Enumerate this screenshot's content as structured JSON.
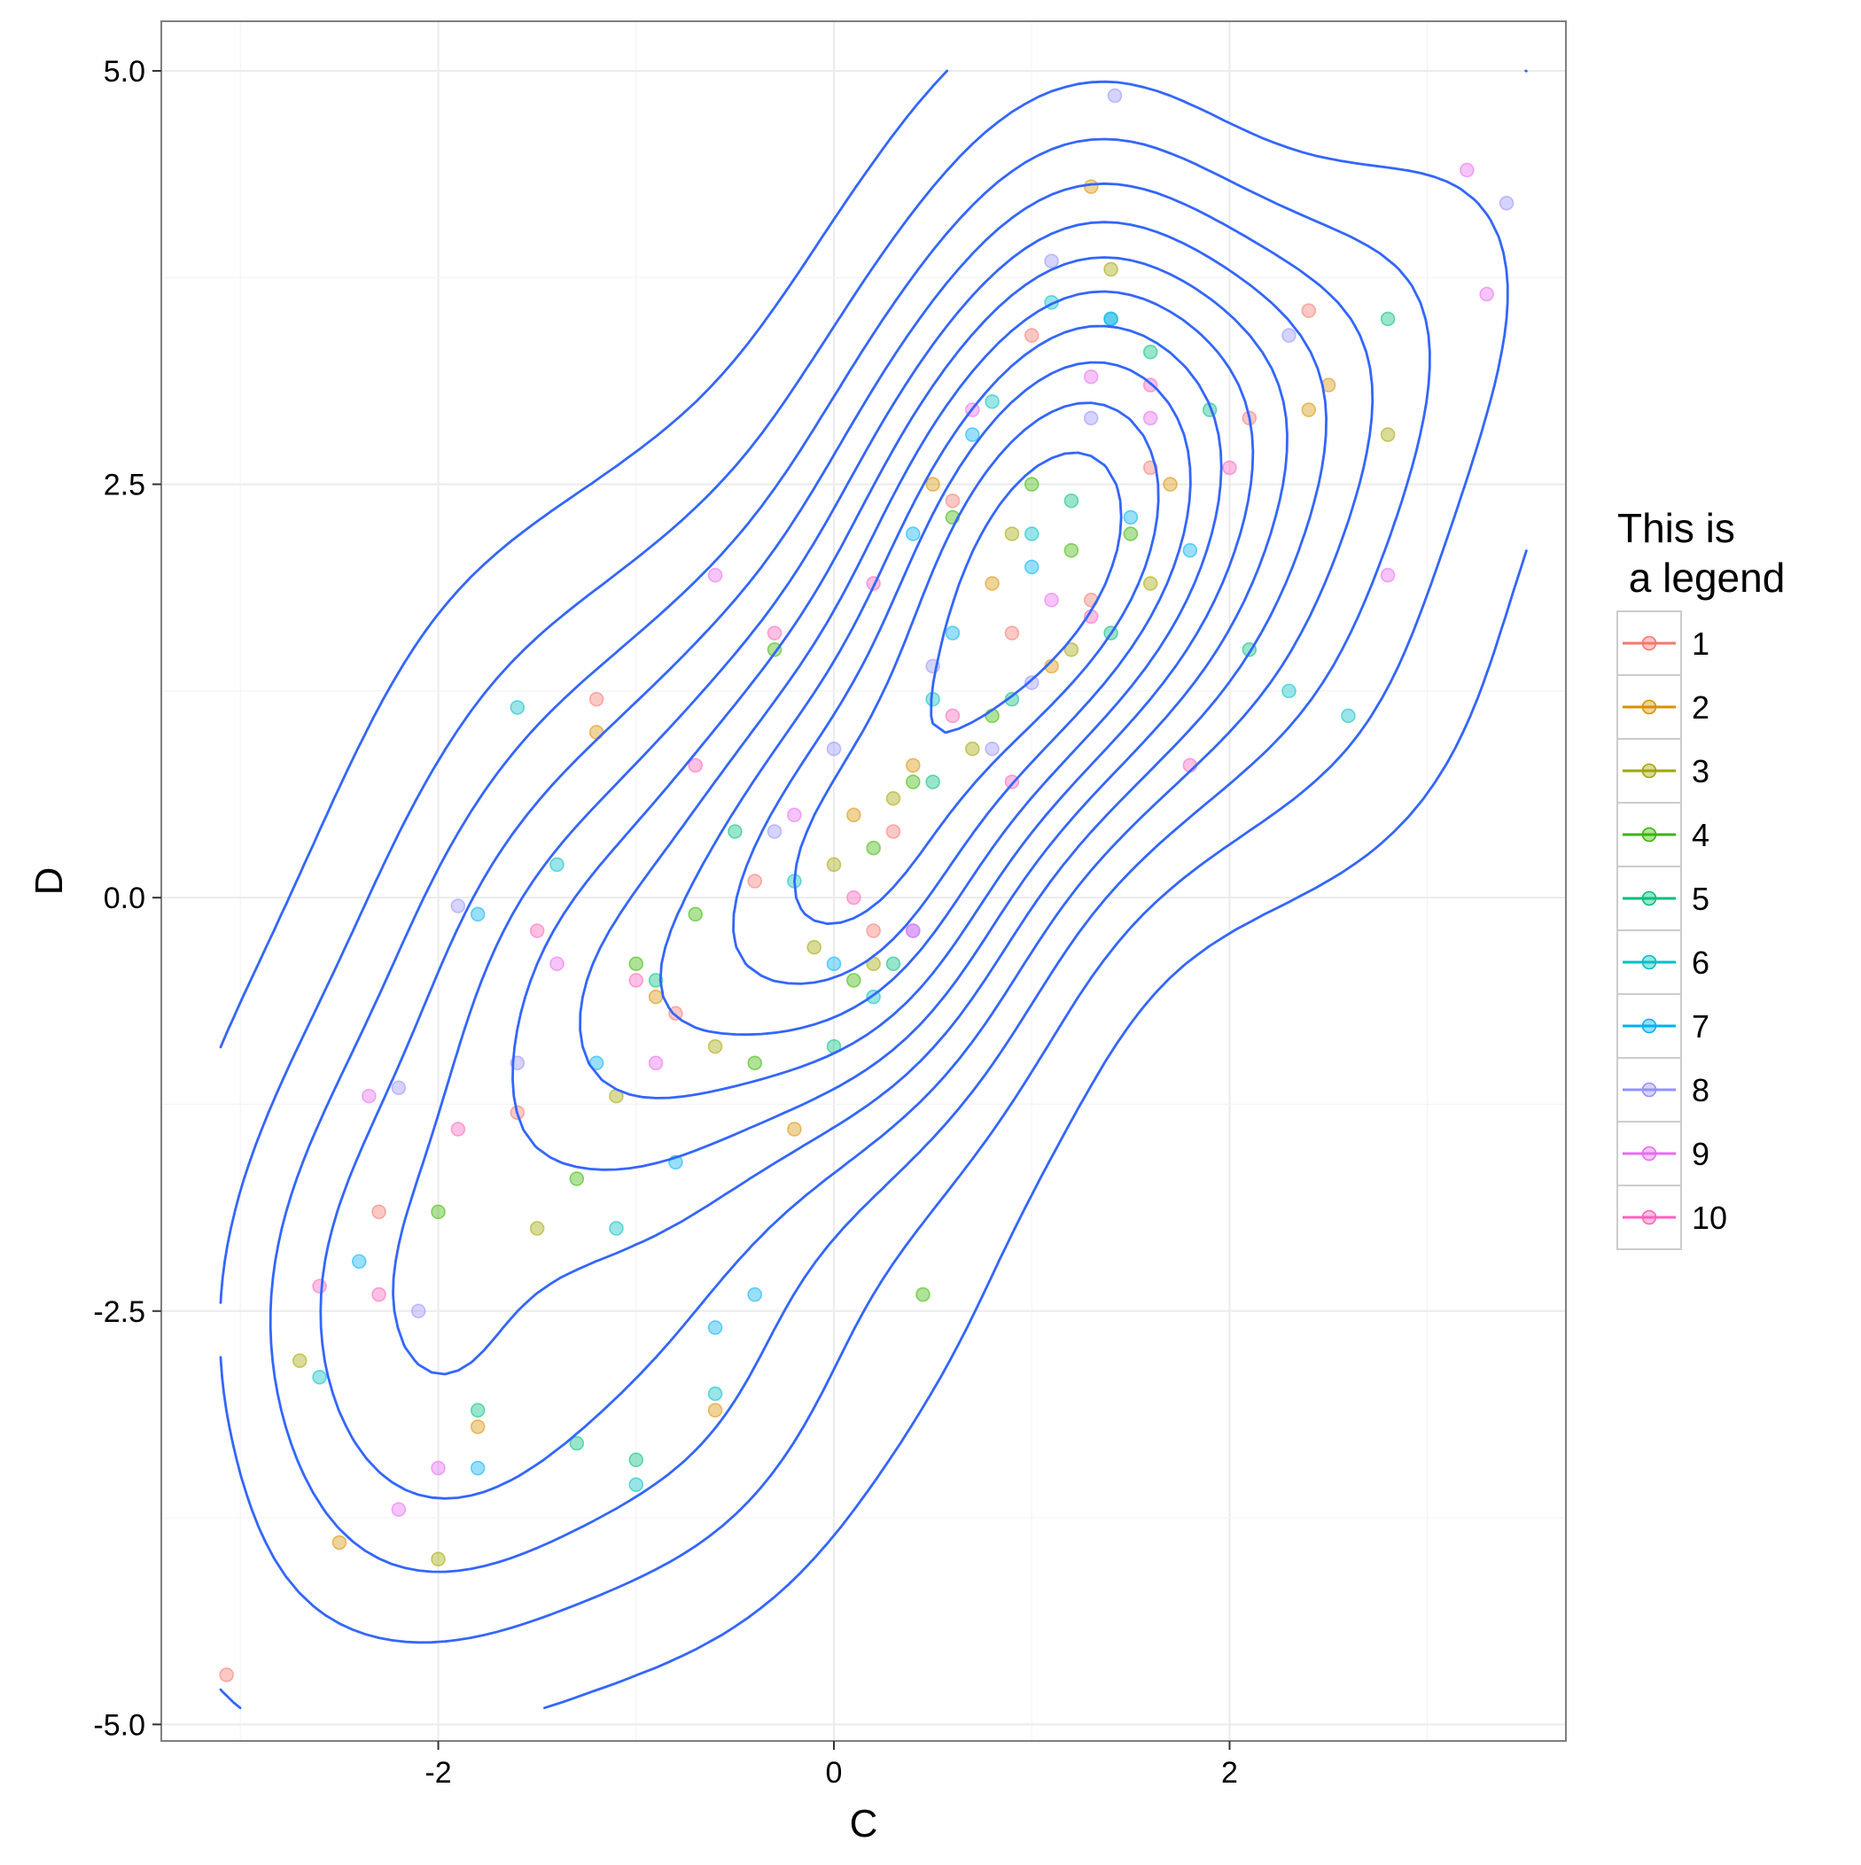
{
  "chart_data": {
    "type": "scatter",
    "title": "",
    "xlabel": "C",
    "ylabel": "D",
    "xlim": [
      -3.4,
      3.7
    ],
    "ylim": [
      -5.1,
      5.3
    ],
    "x_ticks": [
      -2,
      0,
      2
    ],
    "x_tick_labels": [
      "-2",
      "0",
      "2"
    ],
    "y_ticks": [
      -5,
      -2.5,
      0,
      2.5,
      5
    ],
    "y_tick_labels": [
      "-5.0",
      "-2.5",
      "0.0",
      "2.5",
      "5.0"
    ],
    "grid": true,
    "legend": {
      "title_lines": [
        "This is",
        " a legend"
      ],
      "position": "right",
      "entries": [
        "1",
        "2",
        "3",
        "4",
        "5",
        "6",
        "7",
        "8",
        "9",
        "10"
      ],
      "colors": [
        "#F8766D",
        "#D89000",
        "#A3A500",
        "#39B600",
        "#00BF7D",
        "#00BFC4",
        "#00B0F6",
        "#9590FF",
        "#E76BF3",
        "#FF62BC"
      ]
    },
    "point_opacity": 0.4,
    "contour_color": "#3366FF",
    "series": [
      {
        "name": "1",
        "x": [
          -3.07,
          2.4,
          1.0,
          -2.3,
          0.6,
          -1.2,
          0.9,
          1.6,
          -0.8,
          0.3,
          2.1,
          -1.6,
          0.2,
          1.3,
          -0.4
        ],
        "y": [
          -4.7,
          3.55,
          3.4,
          -1.9,
          2.4,
          1.2,
          1.6,
          2.6,
          -0.7,
          0.4,
          2.9,
          -1.3,
          -0.2,
          1.8,
          0.1
        ]
      },
      {
        "name": "2",
        "x": [
          1.3,
          2.5,
          -2.5,
          -0.6,
          0.5,
          -1.2,
          0.8,
          1.7,
          -0.2,
          0.1,
          -1.8,
          1.1,
          -0.9,
          0.4,
          2.4
        ],
        "y": [
          4.3,
          3.1,
          -3.9,
          -3.1,
          2.5,
          1.0,
          1.9,
          2.5,
          -1.4,
          0.5,
          -3.2,
          1.4,
          -0.6,
          0.8,
          2.95
        ]
      },
      {
        "name": "3",
        "x": [
          1.4,
          -2.0,
          -2.7,
          0.2,
          0.9,
          -0.6,
          1.2,
          -1.1,
          0.7,
          -0.1,
          1.6,
          -1.5,
          0.3,
          2.8,
          0.0
        ],
        "y": [
          3.8,
          -4.0,
          -2.8,
          -0.4,
          2.2,
          -0.9,
          1.5,
          -1.2,
          0.9,
          -0.3,
          1.9,
          -2.0,
          0.6,
          2.8,
          0.2
        ]
      },
      {
        "name": "4",
        "x": [
          -0.3,
          0.6,
          1.0,
          -1.0,
          0.4,
          -2.0,
          0.8,
          -1.3,
          1.5,
          0.1,
          -0.7,
          0.2,
          1.2,
          -0.4,
          0.45
        ],
        "y": [
          1.5,
          2.3,
          2.5,
          -0.4,
          0.7,
          -1.9,
          1.1,
          -1.7,
          2.2,
          -0.5,
          -0.1,
          0.3,
          2.1,
          -1.0,
          -2.4
        ]
      },
      {
        "name": "5",
        "x": [
          1.6,
          2.8,
          -1.0,
          -1.3,
          0.9,
          1.2,
          -0.5,
          0.5,
          1.9,
          -0.9,
          0.3,
          -1.8,
          1.4,
          0.0,
          2.1
        ],
        "y": [
          3.3,
          3.5,
          -3.4,
          -3.3,
          1.2,
          2.4,
          0.4,
          0.7,
          2.95,
          -0.5,
          -0.4,
          -3.1,
          1.6,
          -0.9,
          1.5
        ]
      },
      {
        "name": "6",
        "x": [
          -1.6,
          1.1,
          0.8,
          -2.6,
          -1.0,
          2.6,
          -0.6,
          0.2,
          -1.4,
          1.4,
          0.5,
          -0.2,
          1.0,
          -1.1,
          2.3
        ],
        "y": [
          1.15,
          3.6,
          3.0,
          -2.9,
          -3.55,
          1.1,
          -3.0,
          -0.6,
          0.2,
          3.5,
          1.2,
          0.1,
          2.2,
          -2.0,
          1.25
        ]
      },
      {
        "name": "7",
        "x": [
          -1.8,
          1.4,
          0.4,
          -1.8,
          -2.4,
          0.7,
          -0.6,
          -1.2,
          0.0,
          1.5,
          -0.4,
          1.0,
          0.6,
          1.8,
          -0.8
        ],
        "y": [
          -3.45,
          3.5,
          2.2,
          -0.1,
          -2.2,
          2.8,
          -2.6,
          -1.0,
          -0.4,
          2.3,
          -2.4,
          2.0,
          1.6,
          2.1,
          -1.6
        ]
      },
      {
        "name": "8",
        "x": [
          1.42,
          3.4,
          2.3,
          1.1,
          -1.9,
          -2.1,
          0.5,
          0.0,
          -1.6,
          0.8,
          1.3,
          -0.3,
          -2.2,
          0.4,
          1.0
        ],
        "y": [
          4.85,
          4.2,
          3.4,
          3.85,
          -0.05,
          -2.5,
          1.4,
          0.9,
          -1.0,
          0.9,
          2.9,
          0.4,
          -1.15,
          -0.2,
          1.3
        ]
      },
      {
        "name": "9",
        "x": [
          3.2,
          3.3,
          -2.2,
          -2.0,
          -0.6,
          1.3,
          0.7,
          -1.4,
          2.8,
          1.6,
          -0.9,
          -0.2,
          1.1,
          0.4,
          -2.35
        ],
        "y": [
          4.4,
          3.65,
          -3.7,
          -3.45,
          1.95,
          3.15,
          2.95,
          -0.4,
          1.95,
          2.9,
          -1.0,
          0.5,
          1.8,
          -0.2,
          -1.2
        ]
      },
      {
        "name": "10",
        "x": [
          -2.3,
          -1.9,
          1.6,
          0.2,
          -0.7,
          1.3,
          -1.5,
          0.9,
          0.1,
          -0.3,
          2.0,
          -1.0,
          0.6,
          1.8,
          -2.6
        ],
        "y": [
          -2.4,
          -1.4,
          3.1,
          1.9,
          0.8,
          1.7,
          -0.2,
          0.7,
          0.0,
          1.6,
          2.6,
          -0.5,
          1.1,
          0.8,
          -2.35
        ]
      }
    ]
  }
}
